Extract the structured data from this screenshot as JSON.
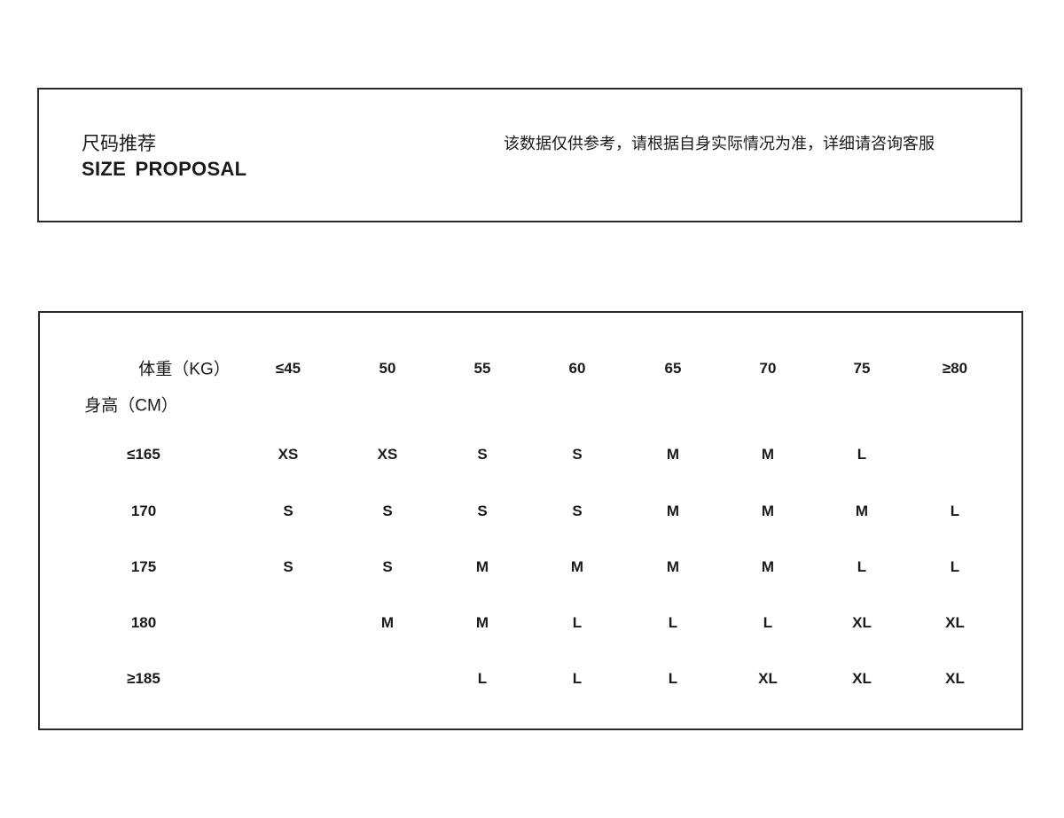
{
  "header": {
    "title_cn": "尺码推荐",
    "title_en": "SIZE  PROPOSAL",
    "note": "该数据仅供参考，请根据自身实际情况为准，详细请咨询客服"
  },
  "table": {
    "weight_label": "体重（KG）",
    "height_label": "身高（CM）",
    "weights": [
      "≤45",
      "50",
      "55",
      "60",
      "65",
      "70",
      "75",
      "≥80"
    ],
    "rows": [
      {
        "height": "≤165",
        "sizes": [
          "XS",
          "XS",
          "S",
          "S",
          "M",
          "M",
          "L",
          ""
        ]
      },
      {
        "height": "170",
        "sizes": [
          "S",
          "S",
          "S",
          "S",
          "M",
          "M",
          "M",
          "L"
        ]
      },
      {
        "height": "175",
        "sizes": [
          "S",
          "S",
          "M",
          "M",
          "M",
          "M",
          "L",
          "L"
        ]
      },
      {
        "height": "180",
        "sizes": [
          "",
          "M",
          "M",
          "L",
          "L",
          "L",
          "XL",
          "XL"
        ]
      },
      {
        "height": "≥185",
        "sizes": [
          "",
          "",
          "L",
          "L",
          "L",
          "XL",
          "XL",
          "XL"
        ]
      }
    ]
  }
}
